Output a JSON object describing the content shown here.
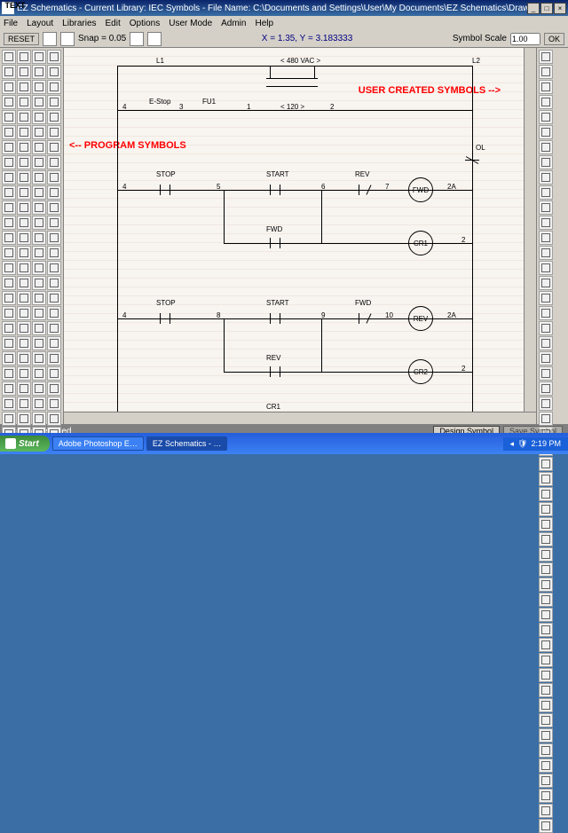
{
  "title": "EZ Schematics - Current Library: IEC Symbols - File Name: C:\\Documents and Settings\\User\\My Documents\\EZ Schematics\\Drawings\\Forward_Reverse.els",
  "menu": [
    "File",
    "Layout",
    "Libraries",
    "Edit",
    "Options",
    "User Mode",
    "Admin",
    "Help"
  ],
  "toolbar": {
    "reset": "RESET",
    "snap": "Snap = 0.05",
    "coord": "X = 1.35, Y = 3.183333",
    "scale_label": "Symbol Scale",
    "scale_val": "1.00",
    "ok": "OK"
  },
  "annotations": {
    "program": "<-- PROGRAM SYMBOLS",
    "user": "USER CREATED SYMBOLS -->"
  },
  "schematic": {
    "labels": {
      "L1": "L1",
      "L2": "L2",
      "voltage": "< 480 VAC >",
      "voltage2": "< 120 >",
      "estop": "E-Stop",
      "fu1": "FU1",
      "stop1": "STOP",
      "start1": "START",
      "rev1": "REV",
      "stop2": "STOP",
      "start2": "START",
      "fwd1": "FWD",
      "fwd2": "FWD",
      "rev2": "REV",
      "cr1_bot": "CR1",
      "ol": "OL"
    },
    "coils": {
      "fwd": "FWD",
      "cr1": "CR1",
      "rev": "REV",
      "cr2": "CR2"
    },
    "nodes": [
      "1",
      "2",
      "2",
      "2",
      "2A",
      "2A",
      "3",
      "4",
      "4",
      "4",
      "5",
      "6",
      "7",
      "8",
      "9",
      "10"
    ]
  },
  "status": {
    "msg": "Nothing selected.",
    "design": "Design Symbol",
    "save": "Save Symbol"
  },
  "palette_left_count": 104,
  "palette_right_count": 52,
  "taskbar": {
    "start": "Start",
    "tasks": [
      "Adobe Photoshop E…",
      "EZ Schematics - …"
    ],
    "time": "2:19 PM"
  },
  "colors": {
    "title": "#0a246a",
    "annot": "#ff0000",
    "canvas_grid": "#f0e8e0"
  }
}
